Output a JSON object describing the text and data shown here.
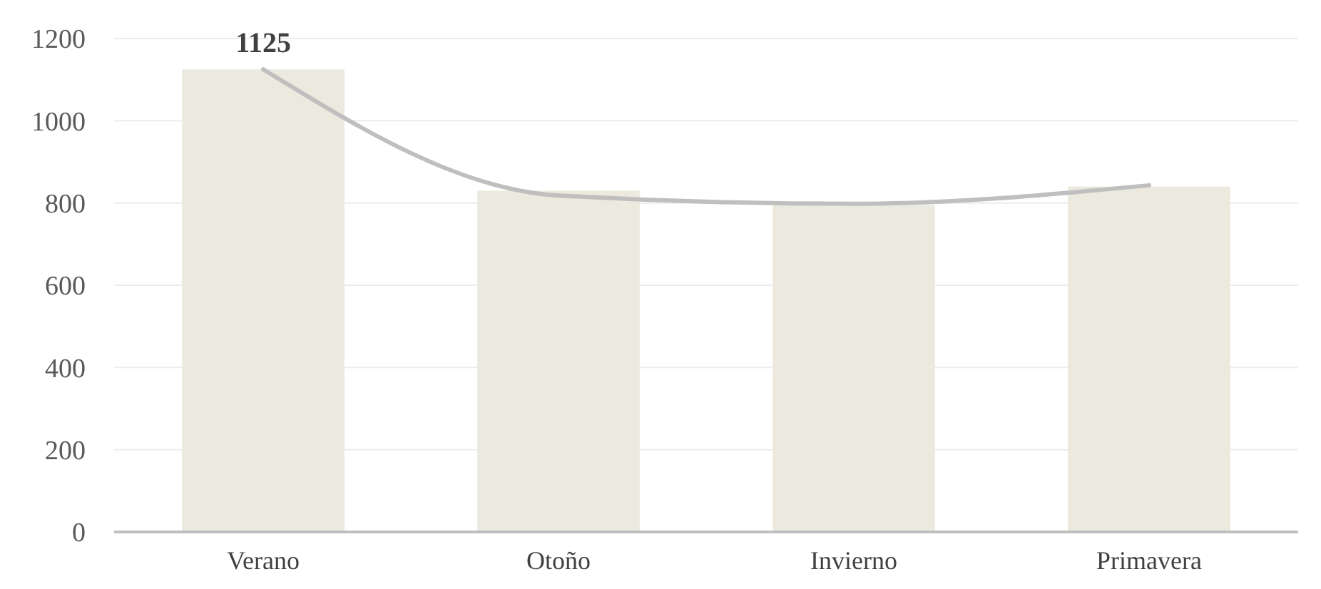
{
  "chart_data": {
    "type": "bar",
    "categories": [
      "Verano",
      "Otoño",
      "Invierno",
      "Primavera"
    ],
    "series": [
      {
        "color": "#ece9df",
        "values": [
          1125,
          830,
          795,
          840
        ],
        "value_labels": [
          "1125",
          null,
          null,
          null
        ]
      },
      {
        "type": "line",
        "color": "#bfbfbf",
        "values": [
          1125,
          818,
          798,
          843
        ]
      }
    ],
    "ylim": [
      0,
      1200
    ],
    "yticks": [
      0,
      200,
      400,
      600,
      800,
      1000,
      1200
    ],
    "grid": "y",
    "marker": "none"
  }
}
